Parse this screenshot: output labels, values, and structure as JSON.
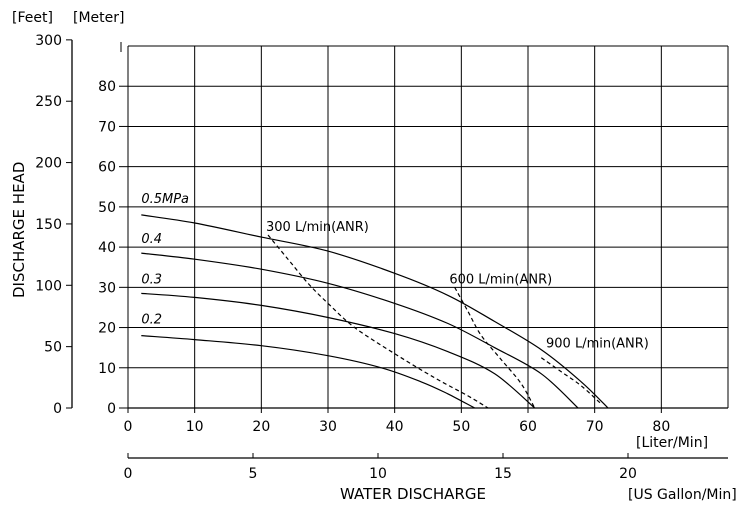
{
  "chart_data": {
    "type": "line",
    "title": "",
    "ylabel": "DISCHARGE HEAD",
    "xlabel": "WATER DISCHARGE",
    "units": {
      "feet": "[Feet]",
      "meter": "[Meter]",
      "liter": "[Liter/Min]",
      "gallon": "[US Gallon/Min]"
    },
    "x_liter": {
      "min": 0,
      "max": 90,
      "ticks": [
        0,
        10,
        20,
        30,
        40,
        50,
        60,
        70,
        80
      ]
    },
    "x_gallon": {
      "min": 0,
      "max": 24,
      "ticks": [
        0,
        5,
        10,
        15,
        20
      ]
    },
    "y_meter": {
      "min": 0,
      "max": 90,
      "ticks": [
        0,
        10,
        20,
        30,
        40,
        50,
        60,
        70,
        80
      ]
    },
    "y_feet": {
      "min": 0,
      "max": 295,
      "ticks": [
        0,
        50,
        100,
        150,
        200,
        250,
        300
      ]
    },
    "grid": true,
    "series": [
      {
        "name": "0.5MPa",
        "style": "solid",
        "points": [
          [
            2,
            48
          ],
          [
            10,
            46
          ],
          [
            20,
            42.5
          ],
          [
            30,
            39
          ],
          [
            40,
            33.5
          ],
          [
            48,
            28
          ],
          [
            55,
            21.5
          ],
          [
            62,
            14.5
          ],
          [
            68,
            6.5
          ],
          [
            72,
            0
          ]
        ]
      },
      {
        "name": "0.4",
        "style": "solid",
        "points": [
          [
            2,
            38.5
          ],
          [
            10,
            37
          ],
          [
            20,
            34.5
          ],
          [
            30,
            31
          ],
          [
            40,
            26
          ],
          [
            48,
            21
          ],
          [
            55,
            15
          ],
          [
            62,
            8.5
          ],
          [
            67.5,
            0
          ]
        ]
      },
      {
        "name": "0.3",
        "style": "solid",
        "points": [
          [
            2,
            28.5
          ],
          [
            10,
            27.5
          ],
          [
            20,
            25.5
          ],
          [
            30,
            22.5
          ],
          [
            40,
            18.5
          ],
          [
            48,
            14
          ],
          [
            55,
            8.5
          ],
          [
            61,
            0
          ]
        ]
      },
      {
        "name": "0.2",
        "style": "solid",
        "points": [
          [
            2,
            18
          ],
          [
            10,
            17
          ],
          [
            20,
            15.5
          ],
          [
            30,
            13
          ],
          [
            38,
            10
          ],
          [
            44,
            6.5
          ],
          [
            48,
            3.5
          ],
          [
            52,
            0
          ]
        ]
      },
      {
        "name": "300 L/min(ANR)",
        "style": "dashed",
        "points": [
          [
            21,
            43
          ],
          [
            24,
            37
          ],
          [
            27,
            31
          ],
          [
            30,
            26
          ],
          [
            34,
            20
          ],
          [
            40,
            13.5
          ],
          [
            46,
            7.5
          ],
          [
            51,
            3
          ],
          [
            54,
            0
          ]
        ]
      },
      {
        "name": "600 L/min(ANR)",
        "style": "dashed",
        "points": [
          [
            49,
            30
          ],
          [
            51,
            24
          ],
          [
            53,
            18
          ],
          [
            56,
            12
          ],
          [
            59,
            6
          ],
          [
            61,
            0
          ]
        ]
      },
      {
        "name": "900 L/min(ANR)",
        "style": "dashed",
        "points": [
          [
            62,
            12.5
          ],
          [
            65,
            9
          ],
          [
            68,
            5.5
          ],
          [
            71,
            1
          ]
        ]
      }
    ],
    "pressure_labels": [
      {
        "text": "0.5MPa",
        "y": 51
      },
      {
        "text": "0.4",
        "y": 41
      },
      {
        "text": "0.3",
        "y": 31
      },
      {
        "text": "0.2",
        "y": 21
      }
    ],
    "flow_labels": [
      {
        "text": "300 L/min(ANR)",
        "x": 21,
        "y": 43
      },
      {
        "text": "600 L/min(ANR)",
        "x": 48.5,
        "y": 30
      },
      {
        "text": "900 L/min(ANR)",
        "x": 63,
        "y": 14
      }
    ]
  }
}
